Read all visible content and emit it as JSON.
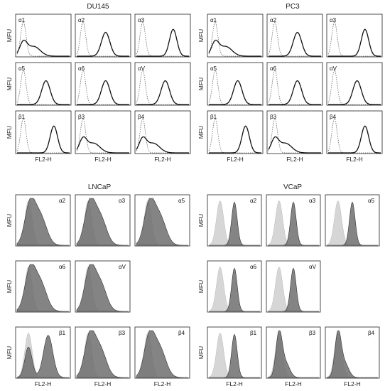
{
  "figure": {
    "top_panels": [
      {
        "title": "DU145",
        "rows": [
          {
            "ylabel": "MFU",
            "cells": [
              {
                "label": "α1",
                "shape": "low"
              },
              {
                "label": "α2",
                "shape": "mid"
              },
              {
                "label": "α3",
                "shape": "high"
              }
            ]
          },
          {
            "ylabel": "MFU",
            "cells": [
              {
                "label": "α5",
                "shape": "mid"
              },
              {
                "label": "α6",
                "shape": "mid"
              },
              {
                "label": "αV",
                "shape": "mid"
              }
            ]
          },
          {
            "ylabel": "MFU",
            "cells": [
              {
                "label": "β1",
                "shape": "high"
              },
              {
                "label": "β3",
                "shape": "low"
              },
              {
                "label": "β4",
                "shape": "low"
              }
            ]
          }
        ],
        "xlabel": "FL2-H"
      },
      {
        "title": "PC3",
        "rows": [
          {
            "ylabel": "MFU",
            "cells": [
              {
                "label": "α1",
                "shape": "low"
              },
              {
                "label": "α2",
                "shape": "mid"
              },
              {
                "label": "α3",
                "shape": "high"
              }
            ]
          },
          {
            "ylabel": "MFU",
            "cells": [
              {
                "label": "α5",
                "shape": "mid"
              },
              {
                "label": "α6",
                "shape": "mid"
              },
              {
                "label": "αV",
                "shape": "mid"
              }
            ]
          },
          {
            "ylabel": "MFU",
            "cells": [
              {
                "label": "β1",
                "shape": "high"
              },
              {
                "label": "β3",
                "shape": "low"
              },
              {
                "label": "β4",
                "shape": "high"
              }
            ]
          }
        ],
        "xlabel": "FL2-H"
      }
    ],
    "bottom_panels": [
      {
        "title": "LNCaP",
        "rows": [
          {
            "ylabel": "MFU",
            "cells": [
              {
                "label": "α2",
                "shape": "broad"
              },
              {
                "label": "α3",
                "shape": "broad"
              },
              {
                "label": "α5",
                "shape": "broad"
              }
            ]
          },
          {
            "ylabel": "MFU",
            "cells": [
              {
                "label": "α6",
                "shape": "broad"
              },
              {
                "label": "αV",
                "shape": "broad"
              },
              null
            ]
          },
          {
            "ylabel": "MFU",
            "cells": [
              {
                "label": "β1",
                "shape": "bimodal"
              },
              {
                "label": "β3",
                "shape": "broad"
              },
              {
                "label": "β4",
                "shape": "broad"
              }
            ]
          }
        ],
        "xlabel": "FL2-H"
      },
      {
        "title": "VCaP",
        "rows": [
          {
            "ylabel": "MFU",
            "cells": [
              {
                "label": "α2",
                "shape": "shift"
              },
              {
                "label": "α3",
                "shape": "shift"
              },
              {
                "label": "α5",
                "shape": "shift"
              }
            ]
          },
          {
            "ylabel": "MFU",
            "cells": [
              {
                "label": "α6",
                "shape": "shift"
              },
              {
                "label": "αV",
                "shape": "shift"
              },
              null
            ]
          },
          {
            "ylabel": "MFU",
            "cells": [
              {
                "label": "β1",
                "shape": "shift"
              },
              {
                "label": "β3",
                "shape": "overlap"
              },
              {
                "label": "β4",
                "shape": "overlap"
              }
            ]
          }
        ],
        "xlabel": "FL2-H"
      }
    ]
  },
  "colors": {
    "axis": "#222222",
    "isotype_line": "#666666",
    "fill_dark": "#6e6e6e",
    "fill_light": "#d6d6d6"
  }
}
